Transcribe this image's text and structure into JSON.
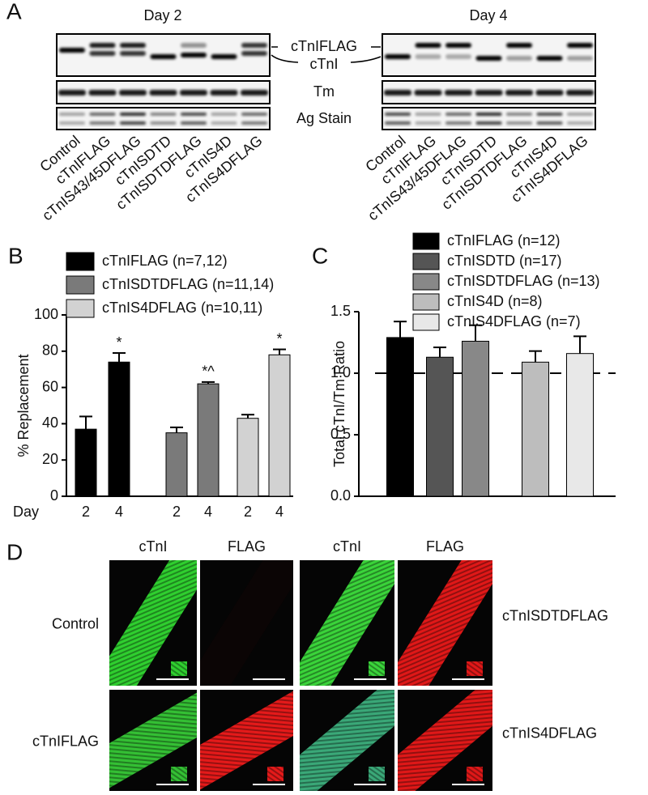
{
  "panel_a": {
    "label": "A",
    "day_labels": [
      "Day 2",
      "Day 4"
    ],
    "band_labels": [
      "cTnIFLAG",
      "cTnI",
      "Tm",
      "Ag Stain"
    ],
    "lanes": [
      "Control",
      "cTnIFLAG",
      "cTnIS43/45DFLAG",
      "cTnISDTD",
      "cTnISDTDFLAG",
      "cTnIS4D",
      "cTnIS4DFLAG"
    ]
  },
  "chart_data": [
    {
      "type": "bar",
      "panel_label": "B",
      "ylabel": "% Replacement",
      "xlabel": "Day",
      "categories": [
        "2",
        "4"
      ],
      "ylim": [
        0,
        100
      ],
      "yticks": [
        0,
        20,
        40,
        60,
        80,
        100
      ],
      "series": [
        {
          "name": "cTnIFLAG (n=7,12)",
          "color": "#000000",
          "values": [
            37,
            74
          ],
          "errors": [
            7,
            5
          ],
          "annotations": [
            null,
            "*"
          ]
        },
        {
          "name": "cTnISDTDFLAG (n=11,14)",
          "color": "#7a7a7a",
          "values": [
            35,
            62
          ],
          "errors": [
            3,
            1
          ],
          "annotations": [
            null,
            "*^"
          ]
        },
        {
          "name": "cTnIS4DFLAG (n=10,11)",
          "color": "#d2d2d2",
          "values": [
            43,
            78
          ],
          "errors": [
            2,
            3
          ],
          "annotations": [
            null,
            "*"
          ]
        }
      ]
    },
    {
      "type": "bar",
      "panel_label": "C",
      "ylabel": "Total cTnI/Tm Ratio",
      "ylim": [
        0,
        1.5
      ],
      "yticks": [
        {
          "value": 0,
          "label": "0.0"
        },
        {
          "value": 0.5,
          "label": "0.5"
        },
        {
          "value": 1,
          "label": "1.0"
        },
        {
          "value": 1.5,
          "label": "1.5"
        }
      ],
      "reference_line": 1,
      "series": [
        {
          "name": "cTnIFLAG (n=12)",
          "color": "#000000",
          "values": [
            1.29
          ],
          "errors": [
            0.13
          ]
        },
        {
          "name": "cTnISDTD (n=17)",
          "color": "#555555",
          "values": [
            1.13
          ],
          "errors": [
            0.08
          ]
        },
        {
          "name": "cTnISDTDFLAG (n=13)",
          "color": "#888888",
          "values": [
            1.26
          ],
          "errors": [
            0.13
          ]
        },
        {
          "name": "cTnIS4D (n=8)",
          "color": "#bdbdbd",
          "values": [
            1.09
          ],
          "errors": [
            0.09
          ]
        },
        {
          "name": "cTnIS4DFLAG (n=7)",
          "color": "#e8e8e8",
          "values": [
            1.16
          ],
          "errors": [
            0.14
          ]
        }
      ]
    }
  ],
  "panel_d": {
    "label": "D",
    "columns": [
      "cTnI",
      "FLAG",
      "cTnI",
      "FLAG"
    ],
    "row_labels": [
      "Control",
      "cTnIFLAG"
    ],
    "right_labels": [
      "cTnISDTDFLAG",
      "cTnIS4DFLAG"
    ]
  }
}
